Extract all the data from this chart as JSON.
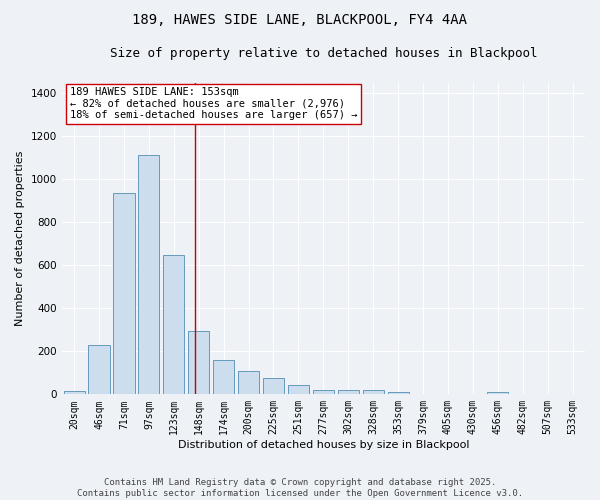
{
  "title": "189, HAWES SIDE LANE, BLACKPOOL, FY4 4AA",
  "subtitle": "Size of property relative to detached houses in Blackpool",
  "xlabel": "Distribution of detached houses by size in Blackpool",
  "ylabel": "Number of detached properties",
  "categories": [
    "20sqm",
    "46sqm",
    "71sqm",
    "97sqm",
    "123sqm",
    "148sqm",
    "174sqm",
    "200sqm",
    "225sqm",
    "251sqm",
    "277sqm",
    "302sqm",
    "328sqm",
    "353sqm",
    "379sqm",
    "405sqm",
    "430sqm",
    "456sqm",
    "482sqm",
    "507sqm",
    "533sqm"
  ],
  "values": [
    15,
    228,
    935,
    1115,
    650,
    295,
    158,
    108,
    78,
    45,
    22,
    18,
    18,
    10,
    0,
    0,
    0,
    12,
    0,
    0,
    0
  ],
  "bar_color": "#ccdded",
  "bar_edge_color": "#6699bb",
  "vline_color": "#cc0000",
  "annotation_text": "189 HAWES SIDE LANE: 153sqm\n← 82% of detached houses are smaller (2,976)\n18% of semi-detached houses are larger (657) →",
  "annotation_box_color": "#ffffff",
  "annotation_box_edge": "#cc0000",
  "ylim": [
    0,
    1450
  ],
  "yticks": [
    0,
    200,
    400,
    600,
    800,
    1000,
    1200,
    1400
  ],
  "bg_color": "#eef2f7",
  "footer": "Contains HM Land Registry data © Crown copyright and database right 2025.\nContains public sector information licensed under the Open Government Licence v3.0.",
  "title_fontsize": 10,
  "subtitle_fontsize": 9,
  "axis_label_fontsize": 8,
  "tick_fontsize": 7.5,
  "annotation_fontsize": 7.5,
  "footer_fontsize": 6.5
}
